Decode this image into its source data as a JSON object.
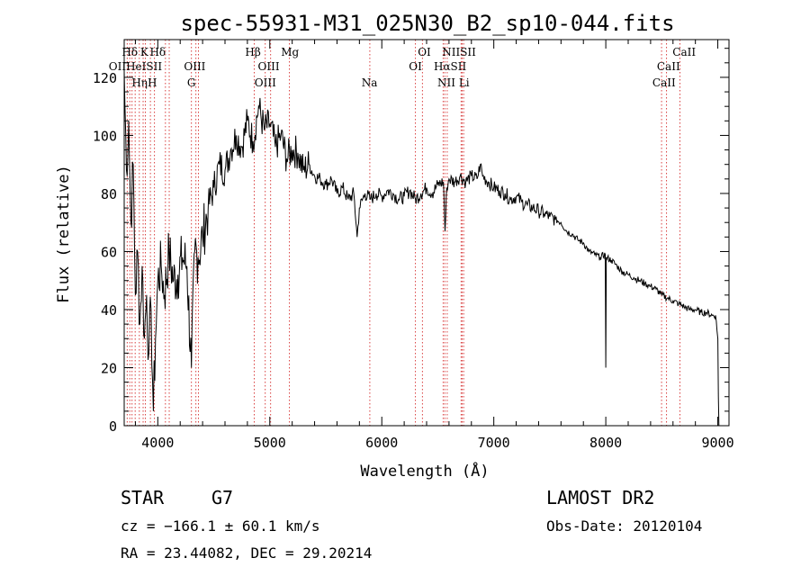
{
  "chart_data": {
    "type": "line",
    "title": "spec-55931-M31_025N30_B2_sp10-044.fits",
    "xlabel": "Wavelength (Å)",
    "ylabel": "Flux (relative)",
    "xlim": [
      3700,
      9100
    ],
    "ylim": [
      0,
      133
    ],
    "x_ticks": [
      "4000",
      "5000",
      "6000",
      "7000",
      "8000",
      "9000"
    ],
    "y_ticks": [
      "0",
      "20",
      "40",
      "60",
      "80",
      "100",
      "120"
    ],
    "grid": false,
    "series": [
      {
        "x": [
          3700,
          3720,
          3740,
          3760,
          3780,
          3800,
          3820,
          3840,
          3860,
          3880,
          3900,
          3920,
          3940,
          3960,
          3980,
          4000,
          4030,
          4060,
          4100,
          4140,
          4180,
          4220,
          4260,
          4300,
          4330,
          4360,
          4400,
          4450,
          4500,
          4550,
          4600,
          4650,
          4700,
          4750,
          4800,
          4850,
          4900,
          4950,
          5000,
          5050,
          5100,
          5150,
          5200,
          5250,
          5300,
          5350,
          5400,
          5450,
          5500,
          5550,
          5600,
          5650,
          5700,
          5750,
          5780,
          5800,
          5850,
          5900,
          5950,
          6000,
          6050,
          6100,
          6150,
          6200,
          6250,
          6300,
          6350,
          6400,
          6450,
          6500,
          6550,
          6565,
          6580,
          6600,
          6650,
          6700,
          6750,
          6800,
          6850,
          6880,
          6900,
          6950,
          7000,
          7050,
          7100,
          7150,
          7200,
          7250,
          7300,
          7350,
          7400,
          7450,
          7500,
          7550,
          7600,
          7650,
          7700,
          7750,
          7800,
          7850,
          7900,
          7950,
          7995,
          8000,
          8005,
          8050,
          8100,
          8150,
          8200,
          8250,
          8300,
          8350,
          8400,
          8450,
          8500,
          8550,
          8600,
          8650,
          8700,
          8750,
          8800,
          8850,
          8900,
          8950,
          8980,
          9000,
          9005,
          9010
        ],
        "y": [
          122,
          88,
          105,
          70,
          90,
          45,
          60,
          35,
          55,
          30,
          45,
          25,
          40,
          5,
          30,
          50,
          55,
          45,
          60,
          50,
          52,
          58,
          55,
          20,
          60,
          58,
          65,
          75,
          82,
          90,
          88,
          95,
          100,
          96,
          105,
          98,
          110,
          102,
          104,
          96,
          100,
          92,
          95,
          94,
          88,
          90,
          86,
          85,
          83,
          85,
          80,
          82,
          78,
          80,
          65,
          75,
          80,
          78,
          80,
          79,
          81,
          80,
          78,
          79,
          81,
          78,
          80,
          82,
          80,
          83,
          84,
          67,
          82,
          85,
          84,
          86,
          84,
          86,
          85,
          90,
          86,
          84,
          82,
          81,
          80,
          78,
          79,
          77,
          76,
          75,
          74,
          73,
          72,
          71,
          70,
          67,
          66,
          64,
          63,
          60,
          59,
          58,
          59,
          20,
          58,
          57,
          55,
          53,
          52,
          51,
          50,
          49,
          48,
          47,
          45,
          44,
          43,
          42,
          41,
          40,
          40,
          39,
          39,
          38,
          38,
          30,
          10,
          0
        ]
      }
    ],
    "lines_top": [
      {
        "label": "Hδ",
        "x": 3750
      },
      {
        "label": "K",
        "x": 3880
      },
      {
        "label": "Hδ",
        "x": 4000
      },
      {
        "label": "Hβ",
        "x": 4850
      },
      {
        "label": "Mg",
        "x": 5180
      },
      {
        "label": "OI",
        "x": 6380
      },
      {
        "label": "NIISII",
        "x": 6690
      },
      {
        "label": "CaII",
        "x": 8700
      }
    ],
    "lines_mid": [
      {
        "label": "OIIHeISII",
        "x": 3800
      },
      {
        "label": "OIII",
        "x": 4330
      },
      {
        "label": "OIII",
        "x": 4990
      },
      {
        "label": "OI",
        "x": 6300
      },
      {
        "label": "HαSII",
        "x": 6610
      },
      {
        "label": "CaII",
        "x": 8560
      }
    ],
    "lines_bot": [
      {
        "label": "HηH",
        "x": 3880
      },
      {
        "label": "G",
        "x": 4300
      },
      {
        "label": "OIII",
        "x": 4960
      },
      {
        "label": "Na",
        "x": 5890
      },
      {
        "label": "NII Li",
        "x": 6640
      },
      {
        "label": "CaII",
        "x": 8520
      }
    ],
    "line_markers": [
      3727,
      3750,
      3770,
      3798,
      3835,
      3869,
      3889,
      3934,
      3970,
      4068,
      4102,
      4300,
      4340,
      4363,
      4861,
      4959,
      5007,
      5175,
      5893,
      6300,
      6363,
      6548,
      6563,
      6584,
      6708,
      6717,
      6731,
      8498,
      8542,
      8662
    ],
    "marker_color": "#d94040"
  },
  "footer": {
    "class_label": "STAR",
    "subclass": "G7",
    "survey": "LAMOST DR2",
    "cz": "cz = −166.1 ± 60.1 km/s",
    "obs_date": "Obs-Date: 20120104",
    "radec": "RA =  23.44082, DEC =  29.20214"
  }
}
